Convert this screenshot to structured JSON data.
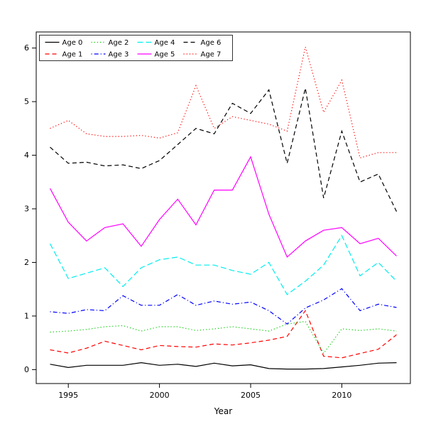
{
  "figure": {
    "xlabel": "Year"
  },
  "chart_data": {
    "type": "line",
    "title": "",
    "xlabel": "Year",
    "ylabel": "",
    "x": [
      1994,
      1995,
      1996,
      1997,
      1998,
      1999,
      2000,
      2001,
      2002,
      2003,
      2004,
      2005,
      2006,
      2007,
      2008,
      2009,
      2010,
      2011,
      2012,
      2013
    ],
    "x_ticks": [
      1995,
      2000,
      2005,
      2010
    ],
    "y_ticks": [
      0,
      1,
      2,
      3,
      4,
      5,
      6
    ],
    "xlim": [
      1994,
      2013
    ],
    "ylim": [
      0,
      6
    ],
    "grid": false,
    "legend_position": "top-left",
    "series": [
      {
        "name": "Age 0",
        "color": "#000000",
        "linestyle": "solid",
        "values": [
          0.1,
          0.04,
          0.08,
          0.08,
          0.08,
          0.13,
          0.08,
          0.1,
          0.06,
          0.12,
          0.07,
          0.09,
          0.02,
          0.01,
          0.01,
          0.02,
          0.05,
          0.08,
          0.12,
          0.13
        ]
      },
      {
        "name": "Age 1",
        "color": "#ff0000",
        "linestyle": "dashed",
        "values": [
          0.37,
          0.31,
          0.4,
          0.53,
          0.45,
          0.37,
          0.45,
          0.43,
          0.42,
          0.48,
          0.46,
          0.5,
          0.55,
          0.62,
          1.1,
          0.25,
          0.22,
          0.3,
          0.38,
          0.65
        ]
      },
      {
        "name": "Age 2",
        "color": "#00cc00",
        "linestyle": "dotted",
        "values": [
          0.7,
          0.72,
          0.75,
          0.8,
          0.82,
          0.72,
          0.8,
          0.8,
          0.73,
          0.76,
          0.8,
          0.76,
          0.72,
          0.85,
          0.9,
          0.3,
          0.76,
          0.73,
          0.76,
          0.72
        ]
      },
      {
        "name": "Age 3",
        "color": "#0000ff",
        "linestyle": "dotdash",
        "values": [
          1.08,
          1.05,
          1.12,
          1.1,
          1.38,
          1.2,
          1.2,
          1.4,
          1.2,
          1.28,
          1.22,
          1.26,
          1.1,
          0.85,
          1.15,
          1.3,
          1.51,
          1.1,
          1.22,
          1.16
        ]
      },
      {
        "name": "Age 4",
        "color": "#00eeee",
        "linestyle": "longdash",
        "values": [
          2.35,
          1.7,
          1.8,
          1.9,
          1.55,
          1.9,
          2.05,
          2.1,
          1.95,
          1.95,
          1.85,
          1.78,
          2.0,
          1.4,
          1.65,
          1.95,
          2.5,
          1.75,
          2.0,
          1.65
        ]
      },
      {
        "name": "Age 5",
        "color": "#ff00ff",
        "linestyle": "solid",
        "values": [
          3.38,
          2.75,
          2.4,
          2.65,
          2.72,
          2.3,
          2.8,
          3.18,
          2.7,
          3.35,
          3.35,
          3.97,
          2.9,
          2.1,
          2.4,
          2.6,
          2.65,
          2.35,
          2.45,
          2.12
        ]
      },
      {
        "name": "Age 6",
        "color": "#000000",
        "linestyle": "dashed",
        "values": [
          4.15,
          3.85,
          3.87,
          3.8,
          3.82,
          3.75,
          3.9,
          4.2,
          4.5,
          4.4,
          4.97,
          4.78,
          5.22,
          3.85,
          5.25,
          3.2,
          4.45,
          3.5,
          3.65,
          2.95
        ]
      },
      {
        "name": "Age 7",
        "color": "#ff0000",
        "linestyle": "dotted",
        "values": [
          4.5,
          4.65,
          4.4,
          4.35,
          4.35,
          4.37,
          4.32,
          4.42,
          5.3,
          4.5,
          4.72,
          4.65,
          4.58,
          4.45,
          6.02,
          4.8,
          5.4,
          3.95,
          4.05,
          4.05
        ]
      }
    ]
  }
}
